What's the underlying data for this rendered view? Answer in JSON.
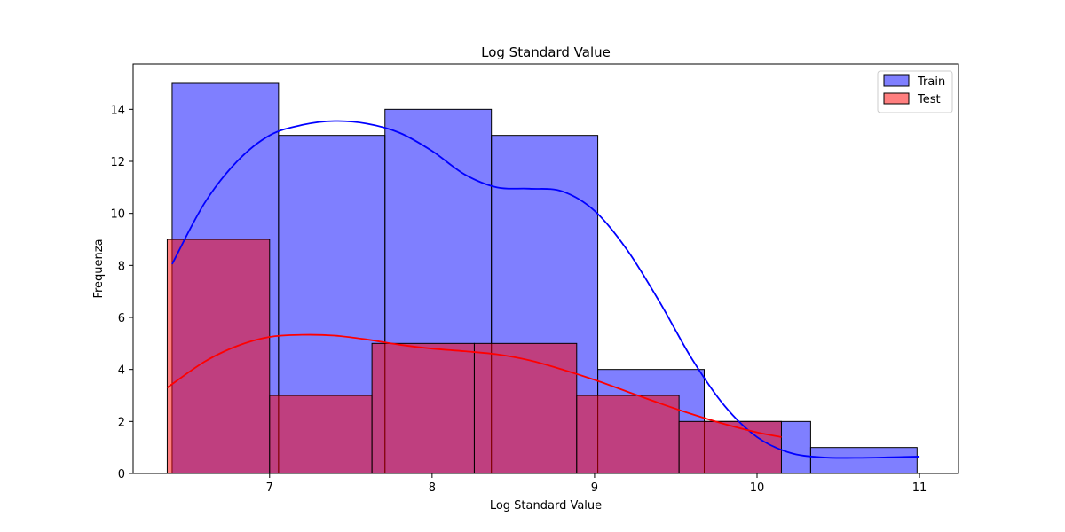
{
  "chart_data": {
    "type": "bar",
    "title": "Log Standard Value",
    "xlabel": "Log Standard Value",
    "ylabel": "Frequenza",
    "xlim": [
      6.16,
      11.24
    ],
    "ylim": [
      0,
      15.75
    ],
    "xticks": [
      7,
      8,
      9,
      10,
      11
    ],
    "yticks": [
      0,
      2,
      4,
      6,
      8,
      10,
      12,
      14
    ],
    "grid": false,
    "legend_position": "top-right",
    "series": [
      {
        "name": "Train",
        "color": "#0000ff",
        "kde_color": "#0000ff",
        "bins": [
          {
            "x0": 6.4,
            "x1": 7.055,
            "value": 15
          },
          {
            "x0": 7.055,
            "x1": 7.71,
            "value": 13
          },
          {
            "x0": 7.71,
            "x1": 8.365,
            "value": 14
          },
          {
            "x0": 8.365,
            "x1": 9.02,
            "value": 13
          },
          {
            "x0": 9.02,
            "x1": 9.675,
            "value": 4
          },
          {
            "x0": 9.675,
            "x1": 10.33,
            "value": 2
          },
          {
            "x0": 10.33,
            "x1": 10.985,
            "value": 1
          }
        ],
        "kde": [
          [
            6.4,
            8.05
          ],
          [
            6.6,
            10.4
          ],
          [
            6.8,
            12.0
          ],
          [
            7.0,
            13.0
          ],
          [
            7.2,
            13.4
          ],
          [
            7.4,
            13.55
          ],
          [
            7.6,
            13.45
          ],
          [
            7.8,
            13.1
          ],
          [
            8.0,
            12.4
          ],
          [
            8.2,
            11.5
          ],
          [
            8.4,
            11.0
          ],
          [
            8.6,
            10.95
          ],
          [
            8.8,
            10.85
          ],
          [
            9.0,
            10.1
          ],
          [
            9.2,
            8.6
          ],
          [
            9.4,
            6.6
          ],
          [
            9.6,
            4.4
          ],
          [
            9.8,
            2.6
          ],
          [
            10.0,
            1.4
          ],
          [
            10.2,
            0.8
          ],
          [
            10.4,
            0.62
          ],
          [
            10.6,
            0.6
          ],
          [
            10.8,
            0.62
          ],
          [
            11.0,
            0.65
          ]
        ]
      },
      {
        "name": "Test",
        "color": "#ff0000",
        "kde_color": "#ff0000",
        "bins": [
          {
            "x0": 6.37,
            "x1": 7.0,
            "value": 9
          },
          {
            "x0": 7.0,
            "x1": 7.63,
            "value": 3
          },
          {
            "x0": 7.63,
            "x1": 8.26,
            "value": 5
          },
          {
            "x0": 8.26,
            "x1": 8.89,
            "value": 5
          },
          {
            "x0": 8.89,
            "x1": 9.52,
            "value": 3
          },
          {
            "x0": 9.52,
            "x1": 10.15,
            "value": 2
          }
        ],
        "kde": [
          [
            6.37,
            3.3
          ],
          [
            6.6,
            4.3
          ],
          [
            6.8,
            4.9
          ],
          [
            7.0,
            5.25
          ],
          [
            7.2,
            5.33
          ],
          [
            7.4,
            5.3
          ],
          [
            7.6,
            5.15
          ],
          [
            7.8,
            4.95
          ],
          [
            8.0,
            4.8
          ],
          [
            8.2,
            4.7
          ],
          [
            8.4,
            4.58
          ],
          [
            8.6,
            4.35
          ],
          [
            8.8,
            4.0
          ],
          [
            9.0,
            3.6
          ],
          [
            9.2,
            3.15
          ],
          [
            9.4,
            2.7
          ],
          [
            9.6,
            2.28
          ],
          [
            9.8,
            1.9
          ],
          [
            10.0,
            1.58
          ],
          [
            10.15,
            1.4
          ]
        ]
      }
    ]
  }
}
